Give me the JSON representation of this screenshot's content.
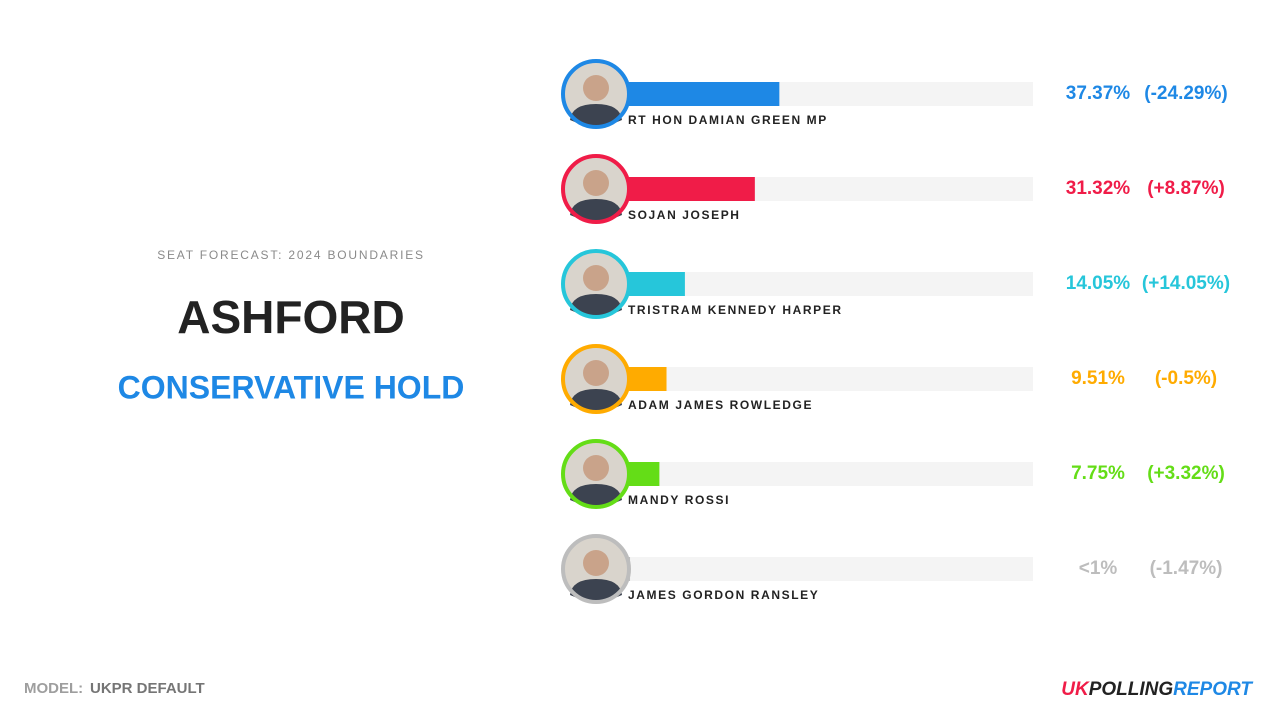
{
  "header": {
    "subtitle": "SEAT FORECAST: 2024 BOUNDARIES",
    "seat": "ASHFORD",
    "result": "CONSERVATIVE HOLD"
  },
  "chart_data": {
    "type": "bar",
    "orientation": "horizontal",
    "xlim": [
      0,
      100
    ],
    "categories": [
      "RT HON DAMIAN GREEN MP",
      "SOJAN JOSEPH",
      "TRISTRAM KENNEDY HARPER",
      "ADAM JAMES ROWLEDGE",
      "MANDY ROSSI",
      "JAMES GORDON RANSLEY"
    ],
    "values": [
      37.37,
      31.32,
      14.05,
      9.51,
      7.75,
      0.5
    ],
    "value_labels": [
      "37.37%",
      "31.32%",
      "14.05%",
      "9.51%",
      "7.75%",
      "<1%"
    ],
    "changes": [
      "(-24.29%)",
      "(+8.87%)",
      "(+14.05%)",
      "(-0.5%)",
      "(+3.32%)",
      "(-1.47%)"
    ],
    "colors": [
      "#1e88e5",
      "#f01c48",
      "#26c6da",
      "#ffab00",
      "#64dd17",
      "#bdbdbd"
    ]
  },
  "footer": {
    "model_label": "MODEL:",
    "model": "UKPR DEFAULT",
    "logo": [
      "UK",
      "POLLING",
      "REPORT"
    ]
  }
}
